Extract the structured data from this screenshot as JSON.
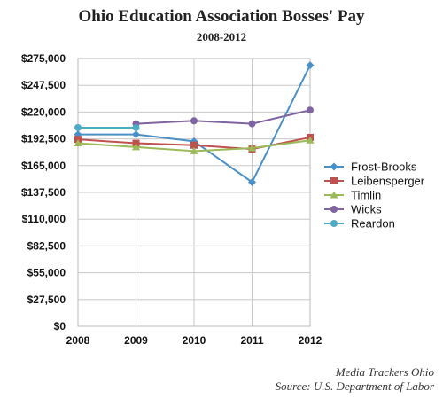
{
  "chart_data": {
    "type": "line",
    "title": "Ohio Education Association Bosses' Pay",
    "subtitle": "2008-2012",
    "x": [
      "2008",
      "2009",
      "2010",
      "2011",
      "2012"
    ],
    "ylim": [
      0,
      275000
    ],
    "y_ticks": [
      "$0",
      "$27,500",
      "$55,000",
      "$82,500",
      "$110,000",
      "$137,500",
      "$165,000",
      "$192,500",
      "$220,000",
      "$247,500",
      "$275,000"
    ],
    "grid": true,
    "legend_position": "right",
    "series": [
      {
        "name": "Frost-Brooks",
        "color": "#4a90c8",
        "marker": "diamond",
        "values": [
          197000,
          197000,
          190000,
          148000,
          268000
        ]
      },
      {
        "name": "Leibensperger",
        "color": "#c0504d",
        "marker": "square",
        "values": [
          192000,
          188000,
          186000,
          182000,
          194000
        ]
      },
      {
        "name": "Timlin",
        "color": "#9bbb59",
        "marker": "triangle",
        "values": [
          188000,
          184000,
          180000,
          183000,
          191000
        ]
      },
      {
        "name": "Wicks",
        "color": "#8064a2",
        "marker": "circle",
        "values": [
          null,
          208000,
          211000,
          208000,
          222000
        ]
      },
      {
        "name": "Reardon",
        "color": "#4bacc6",
        "marker": "circle",
        "values": [
          204000,
          204000,
          null,
          null,
          null
        ]
      }
    ]
  },
  "credits": {
    "line1": "Media Trackers Ohio",
    "line2": "Source: U.S. Department of Labor"
  }
}
